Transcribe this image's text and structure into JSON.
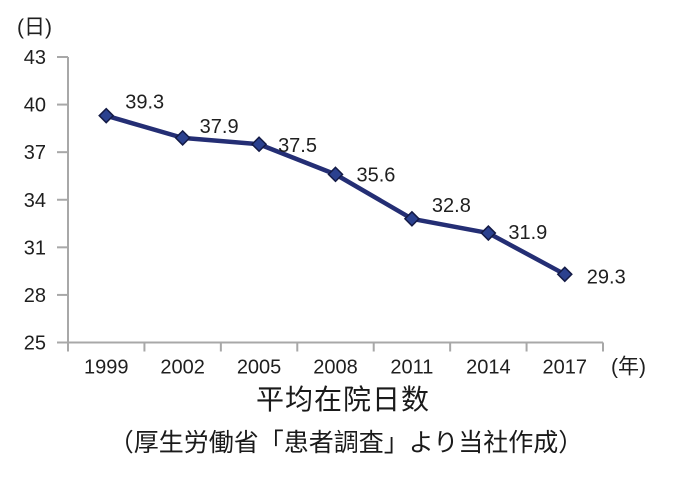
{
  "chart_data": {
    "type": "line",
    "title": "平均在院日数",
    "subtitle": "（厚生労働省「患者調査」より当社作成）",
    "categories": [
      "1999",
      "2002",
      "2005",
      "2008",
      "2011",
      "2014",
      "2017"
    ],
    "series": [
      {
        "name": "平均在院日数",
        "values": [
          39.3,
          37.9,
          37.5,
          35.6,
          32.8,
          31.9,
          29.3
        ]
      }
    ],
    "data_labels": [
      "39.3",
      "37.9",
      "37.5",
      "35.6",
      "32.8",
      "31.9",
      "29.3"
    ],
    "y_axis": {
      "unit_label": "(日)",
      "min": 25,
      "max": 43,
      "ticks": [
        25,
        28,
        31,
        34,
        37,
        40,
        43
      ]
    },
    "x_axis": {
      "unit_label": "(年)"
    },
    "legend": "none",
    "grid": false,
    "colors": {
      "line": "#242E74",
      "marker_fill": "#2B418F",
      "marker_stroke": "#131A45",
      "axis": "#A8A8A8",
      "text": "#1F1F1F",
      "background": "#FFFFFF"
    }
  }
}
